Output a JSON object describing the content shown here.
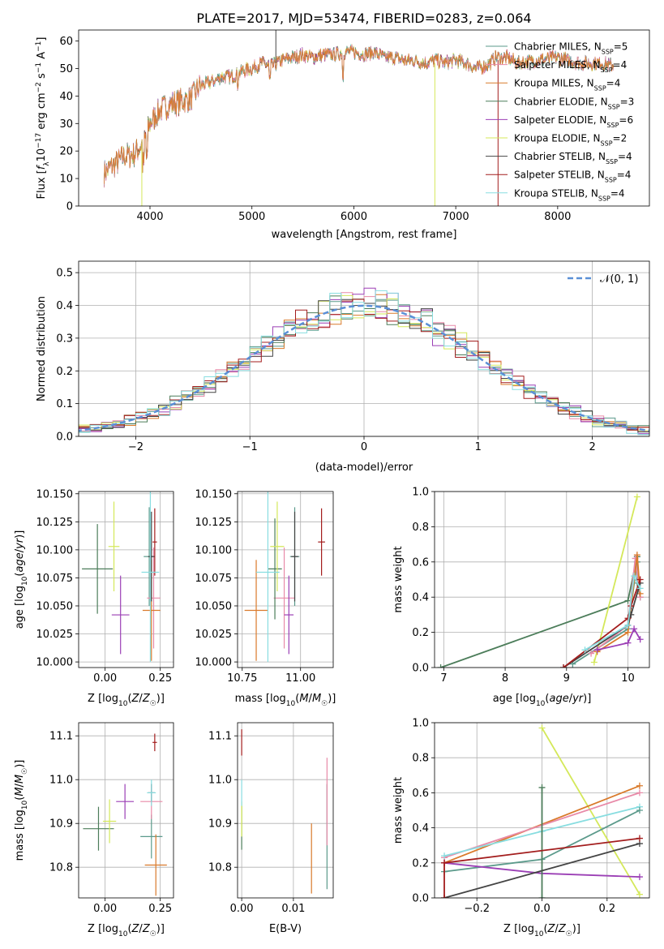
{
  "title": "PLATE=2017, MJD=53474, FIBERID=0283, z=0.064",
  "series": [
    {
      "key": "chab_miles",
      "label": "Chabrier MILES, N",
      "sub": "SSP",
      "eq": "=5",
      "color": "#5b9a8b"
    },
    {
      "key": "salp_miles",
      "label": "Salpeter MILES, N",
      "sub": "SSP",
      "eq": "=4",
      "color": "#e88aa8"
    },
    {
      "key": "krou_miles",
      "label": "Kroupa MILES, N",
      "sub": "SSP",
      "eq": "=4",
      "color": "#d97a2b"
    },
    {
      "key": "chab_elodie",
      "label": "Chabrier ELODIE, N",
      "sub": "SSP",
      "eq": "=3",
      "color": "#4c7d5a"
    },
    {
      "key": "salp_elodie",
      "label": "Salpeter ELODIE, N",
      "sub": "SSP",
      "eq": "=6",
      "color": "#9b3fb5"
    },
    {
      "key": "krou_elodie",
      "label": "Kroupa ELODIE, N",
      "sub": "SSP",
      "eq": "=2",
      "color": "#d4e85a"
    },
    {
      "key": "chab_stelib",
      "label": "Chabrier STELIB, N",
      "sub": "SSP",
      "eq": "=4",
      "color": "#444444"
    },
    {
      "key": "salp_stelib",
      "label": "Salpeter STELIB, N",
      "sub": "SSP",
      "eq": "=4",
      "color": "#a31d1d"
    },
    {
      "key": "krou_stelib",
      "label": "Kroupa STELIB, N",
      "sub": "SSP",
      "eq": "=4",
      "color": "#88dde0"
    }
  ],
  "spectrum_panel": {
    "xlabel": "wavelength [Angstrom, rest frame]",
    "ylabel": "Flux [f_λ 10^-17 erg cm^-2 s^-1 A^-1]",
    "ylabel_parts": {
      "a": "Flux [",
      "b": "f",
      "c": "λ",
      "d": "10",
      "e": "−17",
      "f": " erg cm",
      "g": "−2",
      "h": " s",
      "i": "−1",
      "j": " A",
      "k": "−1",
      "l": "]"
    },
    "xlim": [
      3300,
      8900
    ],
    "ylim": [
      0,
      64
    ],
    "xticks": [
      4000,
      5000,
      6000,
      7000,
      8000
    ],
    "yticks": [
      0,
      10,
      20,
      30,
      40,
      50,
      60
    ],
    "continuum_knots": [
      [
        3550,
        12
      ],
      [
        3650,
        15
      ],
      [
        3750,
        18
      ],
      [
        3850,
        19
      ],
      [
        3950,
        24
      ],
      [
        4000,
        30
      ],
      [
        4100,
        35
      ],
      [
        4200,
        37
      ],
      [
        4300,
        38
      ],
      [
        4400,
        39
      ],
      [
        4500,
        44
      ],
      [
        4600,
        45
      ],
      [
        4700,
        47
      ],
      [
        4800,
        47
      ],
      [
        4900,
        49
      ],
      [
        5000,
        50
      ],
      [
        5100,
        52
      ],
      [
        5200,
        51
      ],
      [
        5300,
        53
      ],
      [
        5400,
        54
      ],
      [
        5500,
        55
      ],
      [
        5600,
        54
      ],
      [
        5700,
        55
      ],
      [
        5800,
        55
      ],
      [
        5900,
        56
      ],
      [
        6000,
        56
      ],
      [
        6100,
        55
      ],
      [
        6200,
        56
      ],
      [
        6300,
        54
      ],
      [
        6400,
        54
      ],
      [
        6500,
        53
      ],
      [
        6600,
        53
      ],
      [
        6700,
        52
      ],
      [
        6800,
        53
      ],
      [
        6900,
        52
      ],
      [
        7000,
        53
      ],
      [
        7100,
        52
      ],
      [
        7200,
        50
      ],
      [
        7300,
        51
      ],
      [
        7400,
        54
      ],
      [
        7500,
        54
      ],
      [
        7600,
        52
      ],
      [
        7800,
        53
      ],
      [
        8000,
        54
      ],
      [
        8200,
        52
      ],
      [
        8400,
        52
      ],
      [
        8550,
        51
      ]
    ]
  },
  "residual_panel": {
    "xlabel": "(data-model)/error",
    "ylabel": "Normed distribution",
    "legend": "𝒩(0, 1)",
    "xlim": [
      -2.5,
      2.5
    ],
    "ylim": [
      0,
      0.535
    ],
    "xticks": [
      -2,
      -1,
      0,
      1,
      2
    ],
    "yticks": [
      0.0,
      0.1,
      0.2,
      0.3,
      0.4,
      0.5
    ],
    "bin_width": 0.1
  },
  "panels": {
    "z_age": {
      "xlabel": "Z [log10(Z/Z☉)]",
      "ylabel": "age  [log10(age/yr)]",
      "xlim": [
        -0.12,
        0.31
      ],
      "ylim": [
        9.995,
        10.152
      ],
      "xticks": [
        0.0,
        0.25
      ],
      "yticks": [
        10.0,
        10.025,
        10.05,
        10.075,
        10.1,
        10.125,
        10.15
      ]
    },
    "mass_age": {
      "xlabel": "mass [log10(M/M☉)]",
      "ylabel": "",
      "xlim": [
        10.73,
        11.14
      ],
      "ylim": [
        9.995,
        10.152
      ],
      "xticks": [
        10.75,
        11.0
      ],
      "yticks": [
        10.0,
        10.025,
        10.05,
        10.075,
        10.1,
        10.125,
        10.15
      ]
    },
    "age_mw": {
      "xlabel": "age  [log10(age/yr)]",
      "ylabel": "mass weight",
      "xlim": [
        6.85,
        10.35
      ],
      "ylim": [
        0,
        1.0
      ],
      "xticks": [
        7,
        8,
        9,
        10
      ],
      "yticks": [
        0.0,
        0.2,
        0.4,
        0.6,
        0.8,
        1.0
      ]
    },
    "z_mass": {
      "xlabel": "Z [log10(Z/Z☉)]",
      "ylabel": "mass [log10(M/M☉)]",
      "xlim": [
        -0.12,
        0.31
      ],
      "ylim": [
        10.73,
        11.13
      ],
      "xticks": [
        0.0,
        0.25
      ],
      "yticks": [
        10.8,
        10.9,
        11.0,
        11.1
      ]
    },
    "ebv_mass": {
      "xlabel": "E(B-V)",
      "ylabel": "",
      "xlim": [
        -0.0008,
        0.0177
      ],
      "ylim": [
        10.73,
        11.13
      ],
      "xticks": [
        0.0,
        0.01
      ],
      "yticks": [
        10.8,
        10.9,
        11.0,
        11.1
      ]
    },
    "z_mw": {
      "xlabel": "Z [log10(Z/Z☉)]",
      "ylabel": "mass weight",
      "xlim": [
        -0.33,
        0.33
      ],
      "ylim": [
        0,
        1.0
      ],
      "xticks": [
        -0.2,
        0.0,
        0.2
      ],
      "yticks": [
        0.0,
        0.2,
        0.4,
        0.6,
        0.8,
        1.0
      ]
    }
  },
  "chart_data": [
    {
      "type": "line",
      "title": "PLATE=2017, MJD=53474, FIBERID=0283, z=0.064",
      "xlabel": "wavelength [Angstrom, rest frame]",
      "ylabel": "Flux",
      "xlim": [
        3300,
        8900
      ],
      "ylim": [
        0,
        64
      ],
      "note": "observed spectrum with 9 SSP model fits, rising from ~12 at 3550 Å to ~55 near 5500-6000 Å, flat ~52 to 8550 Å"
    },
    {
      "type": "line",
      "xlabel": "(data-model)/error",
      "ylabel": "Normed distribution",
      "xlim": [
        -2.5,
        2.5
      ],
      "ylim": [
        0,
        0.535
      ],
      "series": [
        {
          "name": "𝒩(0, 1)",
          "peak": 0.399
        }
      ]
    },
    {
      "type": "scatter",
      "xlabel": "Z",
      "ylabel": "age",
      "points": [
        {
          "s": "chab_miles",
          "x": 0.2,
          "y": 10.094,
          "xe": 0.025,
          "ye": 0.044
        },
        {
          "s": "salp_miles",
          "x": 0.22,
          "y": 10.057,
          "xe": 0.03,
          "ye": 0.045
        },
        {
          "s": "krou_miles",
          "x": 0.21,
          "y": 10.046,
          "xe": 0.04,
          "ye": 0.045
        },
        {
          "s": "chab_elodie",
          "x": -0.035,
          "y": 10.083,
          "xe": 0.07,
          "ye": 0.04
        },
        {
          "s": "salp_elodie",
          "x": 0.07,
          "y": 10.042,
          "xe": 0.04,
          "ye": 0.035
        },
        {
          "s": "krou_elodie",
          "x": 0.04,
          "y": 10.103,
          "xe": 0.025,
          "ye": 0.04
        },
        {
          "s": "chab_stelib",
          "x": 0.21,
          "y": 10.094,
          "xe": 0.015,
          "ye": 0.04
        },
        {
          "s": "salp_stelib",
          "x": 0.225,
          "y": 10.107,
          "xe": 0.01,
          "ye": 0.03
        },
        {
          "s": "krou_stelib",
          "x": 0.205,
          "y": 10.08,
          "xe": 0.04,
          "ye": 0.08
        }
      ]
    },
    {
      "type": "scatter",
      "xlabel": "mass",
      "ylabel": "age",
      "points": [
        {
          "s": "chab_miles",
          "x": 10.975,
          "y": 10.094,
          "xe": 0.02,
          "ye": 0.044
        },
        {
          "s": "salp_miles",
          "x": 10.93,
          "y": 10.057,
          "xe": 0.045,
          "ye": 0.045
        },
        {
          "s": "krou_miles",
          "x": 10.81,
          "y": 10.046,
          "xe": 0.05,
          "ye": 0.045
        },
        {
          "s": "chab_elodie",
          "x": 10.89,
          "y": 10.083,
          "xe": 0.03,
          "ye": 0.045
        },
        {
          "s": "salp_elodie",
          "x": 10.95,
          "y": 10.042,
          "xe": 0.02,
          "ye": 0.035
        },
        {
          "s": "krou_elodie",
          "x": 10.9,
          "y": 10.103,
          "xe": 0.03,
          "ye": 0.04
        },
        {
          "s": "chab_stelib",
          "x": 10.975,
          "y": 10.094,
          "xe": 0.015,
          "ye": 0.04
        },
        {
          "s": "salp_stelib",
          "x": 11.09,
          "y": 10.107,
          "xe": 0.015,
          "ye": 0.03
        },
        {
          "s": "krou_stelib",
          "x": 10.86,
          "y": 10.08,
          "xe": 0.05,
          "ye": 0.08
        }
      ]
    },
    {
      "type": "line",
      "xlabel": "age",
      "ylabel": "mass weight",
      "series": [
        {
          "s": "chab_elodie",
          "pts": [
            [
              6.95,
              0.0
            ],
            [
              10.0,
              0.38
            ],
            [
              10.15,
              0.63
            ]
          ]
        },
        {
          "s": "krou_elodie",
          "pts": [
            [
              9.45,
              0.03
            ],
            [
              10.15,
              0.97
            ]
          ]
        },
        {
          "s": "chab_miles",
          "pts": [
            [
              9.1,
              0.02
            ],
            [
              10.0,
              0.22
            ],
            [
              10.15,
              0.6
            ],
            [
              10.15,
              0.48
            ],
            [
              10.2,
              0.4
            ]
          ]
        },
        {
          "s": "salp_miles",
          "pts": [
            [
              9.4,
              0.08
            ],
            [
              10.0,
              0.24
            ],
            [
              10.12,
              0.62
            ],
            [
              10.2,
              0.4
            ]
          ]
        },
        {
          "s": "krou_miles",
          "pts": [
            [
              9.5,
              0.09
            ],
            [
              10.0,
              0.2
            ],
            [
              10.15,
              0.64
            ],
            [
              10.2,
              0.42
            ]
          ]
        },
        {
          "s": "salp_elodie",
          "pts": [
            [
              9.5,
              0.1
            ],
            [
              10.0,
              0.14
            ],
            [
              10.1,
              0.22
            ],
            [
              10.2,
              0.16
            ]
          ]
        },
        {
          "s": "chab_stelib",
          "pts": [
            [
              8.95,
              0.0
            ],
            [
              10.0,
              0.24
            ],
            [
              10.05,
              0.3
            ],
            [
              10.2,
              0.48
            ]
          ]
        },
        {
          "s": "salp_stelib",
          "pts": [
            [
              8.95,
              0.0
            ],
            [
              10.0,
              0.28
            ],
            [
              10.05,
              0.35
            ],
            [
              10.2,
              0.5
            ]
          ]
        },
        {
          "s": "krou_stelib",
          "pts": [
            [
              9.3,
              0.1
            ],
            [
              10.0,
              0.24
            ],
            [
              10.1,
              0.52
            ],
            [
              10.2,
              0.45
            ]
          ]
        }
      ]
    },
    {
      "type": "scatter",
      "xlabel": "Z",
      "ylabel": "mass",
      "points": [
        {
          "s": "chab_miles",
          "x": 0.21,
          "y": 10.87,
          "xe": 0.05,
          "ye": 0.05
        },
        {
          "s": "salp_miles",
          "x": 0.21,
          "y": 10.95,
          "xe": 0.05,
          "ye": 0.04
        },
        {
          "s": "krou_miles",
          "x": 0.23,
          "y": 10.805,
          "xe": 0.05,
          "ye": 0.07
        },
        {
          "s": "chab_elodie",
          "x": -0.03,
          "y": 10.888,
          "xe": 0.07,
          "ye": 0.05
        },
        {
          "s": "salp_elodie",
          "x": 0.09,
          "y": 10.95,
          "xe": 0.04,
          "ye": 0.04
        },
        {
          "s": "krou_elodie",
          "x": 0.02,
          "y": 10.905,
          "xe": 0.03,
          "ye": 0.05
        },
        {
          "s": "chab_stelib",
          "x": 0.21,
          "y": 10.97,
          "xe": 0.015,
          "ye": 0.02
        },
        {
          "s": "salp_stelib",
          "x": 0.225,
          "y": 11.085,
          "xe": 0.01,
          "ye": 0.02
        },
        {
          "s": "krou_stelib",
          "x": 0.21,
          "y": 10.97,
          "xe": 0.02,
          "ye": 0.03
        }
      ]
    },
    {
      "type": "scatter",
      "xlabel": "E(B-V)",
      "ylabel": "mass",
      "points": [
        {
          "s": "chab_miles",
          "x": 0.0165,
          "y": 10.87,
          "xe": 0.0,
          "ye": 0.12
        },
        {
          "s": "salp_miles",
          "x": 0.0165,
          "y": 10.95,
          "xe": 0.0,
          "ye": 0.1
        },
        {
          "s": "krou_miles",
          "x": 0.0135,
          "y": 10.82,
          "xe": 0.0,
          "ye": 0.08
        },
        {
          "s": "chab_elodie",
          "x": 0.0,
          "y": 10.89,
          "xe": 0.0,
          "ye": 0.05
        },
        {
          "s": "krou_elodie",
          "x": 0.0,
          "y": 10.91,
          "xe": 0.0,
          "ye": 0.04
        },
        {
          "s": "salp_stelib",
          "x": 0.0,
          "y": 11.085,
          "xe": 0.0,
          "ye": 0.03
        },
        {
          "s": "krou_stelib",
          "x": 0.0,
          "y": 10.97,
          "xe": 0.0,
          "ye": 0.03
        }
      ]
    },
    {
      "type": "line",
      "xlabel": "Z",
      "ylabel": "mass weight",
      "series": [
        {
          "s": "krou_elodie",
          "pts": [
            [
              0.0,
              0.97
            ],
            [
              0.3,
              0.02
            ]
          ]
        },
        {
          "s": "krou_miles",
          "pts": [
            [
              -0.3,
              0.2
            ],
            [
              0.3,
              0.64
            ]
          ]
        },
        {
          "s": "salp_miles",
          "pts": [
            [
              -0.3,
              0.23
            ],
            [
              0.3,
              0.6
            ]
          ]
        },
        {
          "s": "krou_stelib",
          "pts": [
            [
              -0.3,
              0.24
            ],
            [
              0.0,
              0.38
            ],
            [
              0.3,
              0.52
            ]
          ]
        },
        {
          "s": "chab_miles",
          "pts": [
            [
              -0.3,
              0.15
            ],
            [
              0.0,
              0.22
            ],
            [
              0.3,
              0.5
            ]
          ]
        },
        {
          "s": "salp_elodie",
          "pts": [
            [
              -0.3,
              0.2
            ],
            [
              0.0,
              0.14
            ],
            [
              0.3,
              0.12
            ]
          ]
        },
        {
          "s": "chab_elodie",
          "pts": [
            [
              0.0,
              0.0
            ],
            [
              0.0,
              0.63
            ]
          ]
        },
        {
          "s": "chab_stelib",
          "pts": [
            [
              -0.3,
              0.0
            ],
            [
              0.3,
              0.31
            ]
          ]
        },
        {
          "s": "salp_stelib",
          "pts": [
            [
              -0.3,
              0.0
            ],
            [
              -0.3,
              0.2
            ],
            [
              0.3,
              0.34
            ]
          ]
        }
      ]
    }
  ]
}
